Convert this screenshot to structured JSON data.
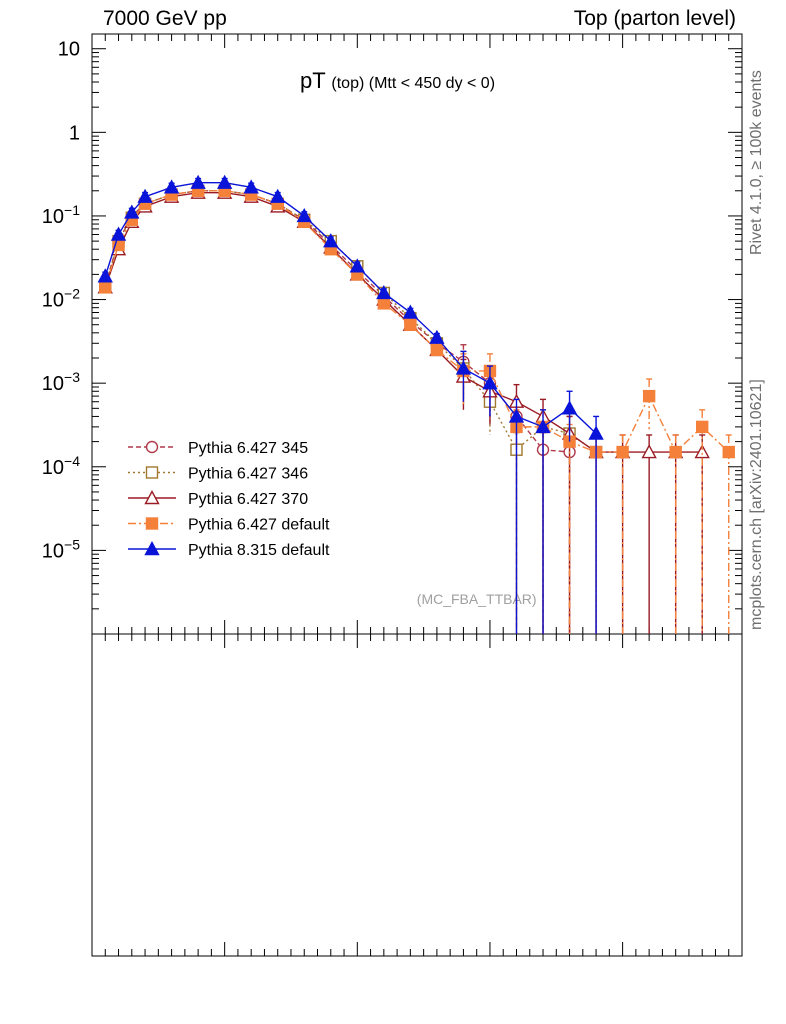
{
  "header": {
    "left": "7000 GeV pp",
    "right": "Top (parton level)"
  },
  "title": {
    "main": "pT",
    "sub": "(top) (Mtt < 450 dy < 0)"
  },
  "side_labels": {
    "rivet": "Rivet 4.1.0, ≥ 100k events",
    "mcplots": "mcplots.cern.ch [arXiv:2401.10621]"
  },
  "watermark": "(MC_FBA_TTBAR)",
  "colors": {
    "p345": "#b03a4a",
    "p346": "#a07830",
    "p370": "#9b1b24",
    "p6def": "#f5803a",
    "p8def": "#0a14d8"
  },
  "chart_data": {
    "type": "line",
    "title": "pT (top) (Mtt < 450 dy < 0)",
    "xlabel": "",
    "ylabel": "",
    "yscale": "log",
    "ylim": [
      1e-06,
      15
    ],
    "xlim": [
      0,
      490
    ],
    "yticks": [
      {
        "value": 10,
        "label": "10"
      },
      {
        "value": 1,
        "label": "1"
      },
      {
        "value": 0.1,
        "label": "10^-1"
      },
      {
        "value": 0.01,
        "label": "10^-2"
      },
      {
        "value": 0.001,
        "label": "10^-3"
      },
      {
        "value": 0.0001,
        "label": "10^-4"
      },
      {
        "value": 1e-05,
        "label": "10^-5"
      }
    ],
    "legend_position": "bottom-left",
    "series": [
      {
        "name": "Pythia 6.427 345",
        "color_key": "p345",
        "marker": "circle-open",
        "dash": "5,3",
        "x": [
          10,
          20,
          30,
          40,
          60,
          80,
          100,
          120,
          140,
          160,
          180,
          200,
          220,
          240,
          260,
          280,
          300,
          320,
          340,
          360
        ],
        "y": [
          0.015,
          0.05,
          0.1,
          0.14,
          0.18,
          0.2,
          0.2,
          0.18,
          0.14,
          0.09,
          0.045,
          0.022,
          0.011,
          0.0055,
          0.003,
          0.0018,
          0.001,
          0.0004,
          0.00016,
          0.00015
        ]
      },
      {
        "name": "Pythia 6.427 346",
        "color_key": "p346",
        "marker": "square-open",
        "dash": "2,3",
        "x": [
          10,
          20,
          30,
          40,
          60,
          80,
          100,
          120,
          140,
          160,
          180,
          200,
          220,
          240,
          260,
          280,
          300,
          320,
          340,
          360,
          380
        ],
        "y": [
          0.014,
          0.05,
          0.095,
          0.14,
          0.18,
          0.2,
          0.2,
          0.18,
          0.14,
          0.09,
          0.05,
          0.025,
          0.012,
          0.006,
          0.003,
          0.0015,
          0.0006,
          0.00016,
          0.0003,
          0.00025,
          0.00015
        ]
      },
      {
        "name": "Pythia 6.427 370",
        "color_key": "p370",
        "marker": "triangle-open",
        "dash": "",
        "x": [
          10,
          20,
          30,
          40,
          60,
          80,
          100,
          120,
          140,
          160,
          180,
          200,
          220,
          240,
          260,
          280,
          300,
          320,
          340,
          360,
          380,
          400,
          420,
          440,
          460
        ],
        "y": [
          0.014,
          0.04,
          0.085,
          0.13,
          0.17,
          0.19,
          0.19,
          0.17,
          0.13,
          0.085,
          0.042,
          0.02,
          0.01,
          0.005,
          0.0025,
          0.0012,
          0.0008,
          0.0006,
          0.0004,
          0.00025,
          0.00015,
          0.00015,
          0.00015,
          0.00015,
          0.00015
        ]
      },
      {
        "name": "Pythia 6.427 default",
        "color_key": "p6def",
        "marker": "square-filled",
        "dash": "8,3,2,3",
        "x": [
          10,
          20,
          30,
          40,
          60,
          80,
          100,
          120,
          140,
          160,
          180,
          200,
          220,
          240,
          260,
          280,
          300,
          320,
          340,
          360,
          380,
          400,
          420,
          440,
          460,
          480
        ],
        "y": [
          0.014,
          0.045,
          0.09,
          0.14,
          0.18,
          0.2,
          0.2,
          0.18,
          0.14,
          0.085,
          0.04,
          0.02,
          0.009,
          0.005,
          0.0025,
          0.0014,
          0.0014,
          0.0003,
          0.0003,
          0.0002,
          0.00015,
          0.00015,
          0.0007,
          0.00015,
          0.0003,
          0.00015
        ]
      },
      {
        "name": "Pythia 8.315 default",
        "color_key": "p8def",
        "marker": "triangle-filled",
        "dash": "",
        "x": [
          10,
          20,
          30,
          40,
          60,
          80,
          100,
          120,
          140,
          160,
          180,
          200,
          220,
          240,
          260,
          280,
          300,
          320,
          340,
          360,
          380
        ],
        "y": [
          0.019,
          0.06,
          0.11,
          0.17,
          0.22,
          0.25,
          0.25,
          0.22,
          0.17,
          0.1,
          0.05,
          0.025,
          0.012,
          0.007,
          0.0035,
          0.0015,
          0.001,
          0.0004,
          0.0003,
          0.0005,
          0.00025
        ]
      }
    ]
  }
}
